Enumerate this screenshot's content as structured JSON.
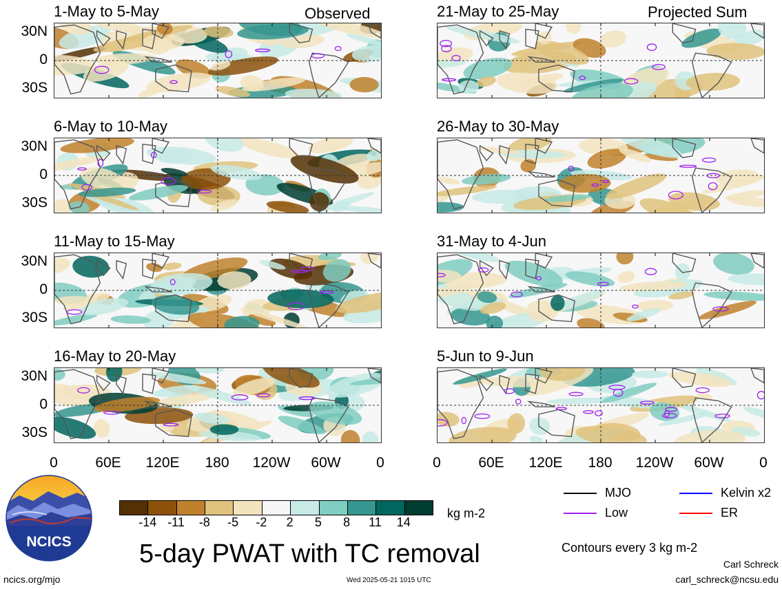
{
  "chart_data": {
    "type": "heatmap",
    "title": "5-day PWAT with TC removal",
    "units": "kg m-2",
    "sections": [
      "Observed",
      "Projected Sum"
    ],
    "panels": [
      {
        "label": "1-May to 5-May",
        "section": "Observed"
      },
      {
        "label": "6-May to 10-May",
        "section": "Observed"
      },
      {
        "label": "11-May to 15-May",
        "section": "Observed"
      },
      {
        "label": "16-May to 20-May",
        "section": "Observed"
      },
      {
        "label": "21-May to 25-May",
        "section": "Projected Sum"
      },
      {
        "label": "26-May to 30-May",
        "section": "Projected Sum"
      },
      {
        "label": "31-May to 4-Jun",
        "section": "Projected Sum"
      },
      {
        "label": "5-Jun to 9-Jun",
        "section": "Projected Sum"
      }
    ],
    "y_ticks": [
      "30N",
      "0",
      "30S"
    ],
    "x_ticks": [
      "0",
      "60E",
      "120E",
      "180",
      "120W",
      "60W",
      "0"
    ],
    "colorbar": {
      "ticks": [
        "-14",
        "-11",
        "-8",
        "-5",
        "-2",
        "2",
        "5",
        "8",
        "11",
        "14"
      ],
      "colors": [
        "#543005",
        "#8c510a",
        "#bf812d",
        "#dfc27d",
        "#f2e4bf",
        "#f7f7f7",
        "#c7eae5",
        "#80cdc1",
        "#35978f",
        "#01665e",
        "#003c30"
      ]
    },
    "contour_legend": [
      {
        "label": "MJO",
        "color": "#000000"
      },
      {
        "label": "Kelvin x2",
        "color": "#0000ff"
      },
      {
        "label": "Low",
        "color": "#a020f0"
      },
      {
        "label": "ER",
        "color": "#ff0000"
      }
    ],
    "contour_note": "Contours every 3 kg m-2"
  },
  "footer": {
    "left": "ncics.org/mjo",
    "center": "Wed 2025-05-21 1015 UTC",
    "author": "Carl Schreck",
    "email": "carl_schreck@ncsu.edu"
  },
  "logo": {
    "text": "NCICS"
  }
}
